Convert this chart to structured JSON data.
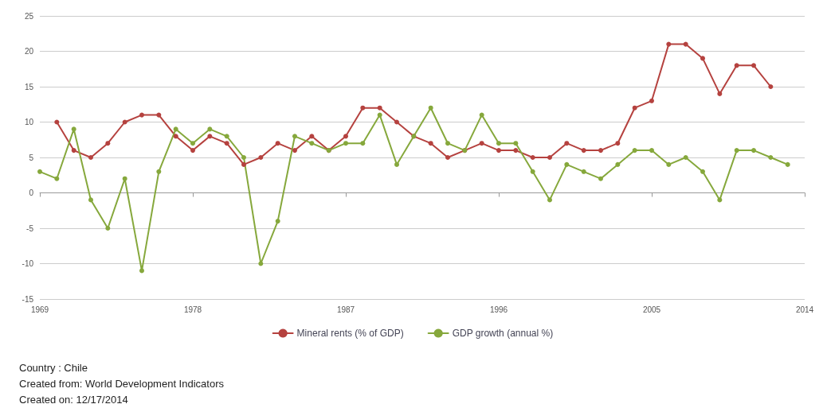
{
  "chart_data": {
    "type": "line",
    "xlim": [
      1969,
      2014
    ],
    "xticks": [
      1969,
      1978,
      1987,
      1996,
      2005,
      2014
    ],
    "ylim": [
      -15,
      25
    ],
    "yticks": [
      -15,
      -10,
      -5,
      0,
      5,
      10,
      15,
      20,
      25
    ],
    "grid": "y",
    "legend": "bottom",
    "marker": "circle",
    "line_style": "solid",
    "series": [
      {
        "name": "Mineral rents (% of GDP)",
        "color": "#b5423f",
        "x": [
          1970,
          1971,
          1972,
          1973,
          1974,
          1975,
          1976,
          1977,
          1978,
          1979,
          1980,
          1981,
          1982,
          1983,
          1984,
          1985,
          1986,
          1987,
          1988,
          1989,
          1990,
          1991,
          1992,
          1993,
          1994,
          1995,
          1996,
          1997,
          1998,
          1999,
          2000,
          2001,
          2002,
          2003,
          2004,
          2005,
          2006,
          2007,
          2008,
          2009,
          2010,
          2011,
          2012
        ],
        "values": [
          10,
          6,
          5,
          7,
          10,
          11,
          11,
          8,
          6,
          8,
          7,
          4,
          5,
          7,
          6,
          8,
          6,
          8,
          12,
          12,
          10,
          8,
          7,
          5,
          6,
          7,
          6,
          6,
          5,
          5,
          7,
          6,
          6,
          7,
          12,
          13,
          21,
          21,
          19,
          14,
          18,
          18,
          15
        ]
      },
      {
        "name": "GDP growth (annual %)",
        "color": "#86a83c",
        "x": [
          1969,
          1970,
          1971,
          1972,
          1973,
          1974,
          1975,
          1976,
          1977,
          1978,
          1979,
          1980,
          1981,
          1982,
          1983,
          1984,
          1985,
          1986,
          1987,
          1988,
          1989,
          1990,
          1991,
          1992,
          1993,
          1994,
          1995,
          1996,
          1997,
          1998,
          1999,
          2000,
          2001,
          2002,
          2003,
          2004,
          2005,
          2006,
          2007,
          2008,
          2009,
          2010,
          2011,
          2012,
          2013
        ],
        "values": [
          3,
          2,
          9,
          -1,
          -5,
          2,
          -11,
          3,
          9,
          7,
          9,
          8,
          5,
          -10,
          -4,
          8,
          7,
          6,
          7,
          7,
          11,
          4,
          8,
          12,
          7,
          6,
          11,
          7,
          7,
          3,
          -1,
          4,
          3,
          2,
          4,
          6,
          6,
          4,
          5,
          3,
          -1,
          6,
          6,
          5,
          4
        ]
      }
    ],
    "annotations": [
      "Country : Chile",
      "Created from: World Development Indicators",
      "Created on: 12/17/2014"
    ]
  }
}
